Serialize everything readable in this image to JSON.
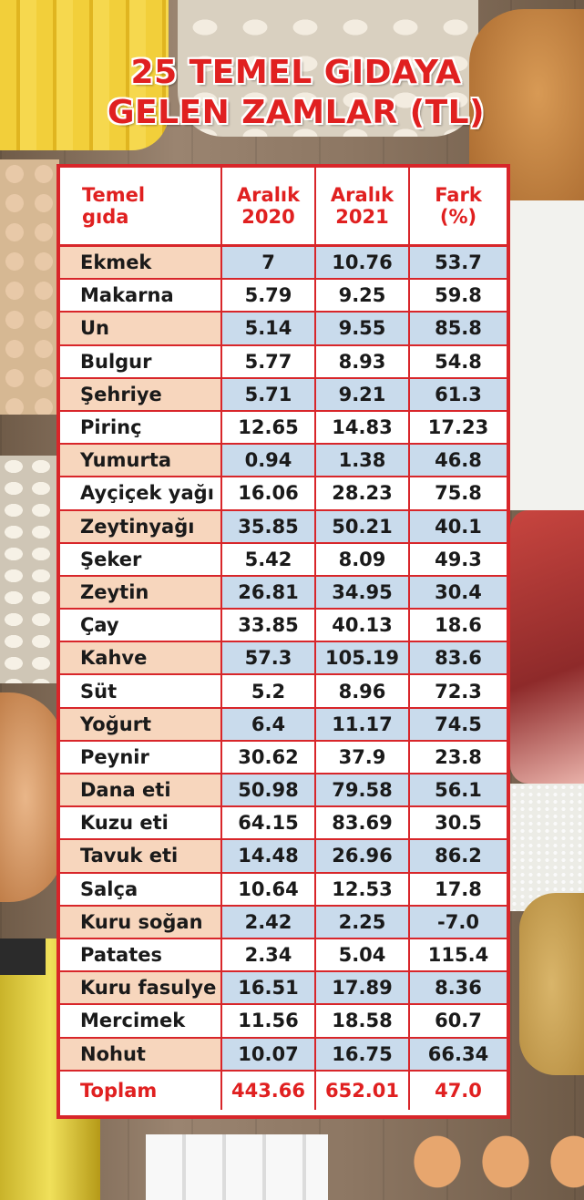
{
  "title_line1": "25 TEMEL GIDAYA",
  "title_line2": "GELEN ZAMLAR (TL)",
  "chart_data": {
    "type": "table",
    "columns": [
      "Temel gıda",
      "Aralık 2020",
      "Aralık 2021",
      "Fark (%)"
    ],
    "rows": [
      [
        "Ekmek",
        "7",
        "10.76",
        "53.7"
      ],
      [
        "Makarna",
        "5.79",
        "9.25",
        "59.8"
      ],
      [
        "Un",
        "5.14",
        "9.55",
        "85.8"
      ],
      [
        "Bulgur",
        "5.77",
        "8.93",
        "54.8"
      ],
      [
        "Şehriye",
        "5.71",
        "9.21",
        "61.3"
      ],
      [
        "Pirinç",
        "12.65",
        "14.83",
        "17.23"
      ],
      [
        "Yumurta",
        "0.94",
        "1.38",
        "46.8"
      ],
      [
        "Ayçiçek yağı",
        "16.06",
        "28.23",
        "75.8"
      ],
      [
        "Zeytinyağı",
        "35.85",
        "50.21",
        "40.1"
      ],
      [
        "Şeker",
        "5.42",
        "8.09",
        "49.3"
      ],
      [
        "Zeytin",
        "26.81",
        "34.95",
        "30.4"
      ],
      [
        "Çay",
        "33.85",
        "40.13",
        "18.6"
      ],
      [
        "Kahve",
        "57.3",
        "105.19",
        "83.6"
      ],
      [
        "Süt",
        "5.2",
        "8.96",
        "72.3"
      ],
      [
        "Yoğurt",
        "6.4",
        "11.17",
        "74.5"
      ],
      [
        "Peynir",
        "30.62",
        "37.9",
        "23.8"
      ],
      [
        "Dana eti",
        "50.98",
        "79.58",
        "56.1"
      ],
      [
        "Kuzu eti",
        "64.15",
        "83.69",
        "30.5"
      ],
      [
        "Tavuk eti",
        "14.48",
        "26.96",
        "86.2"
      ],
      [
        "Salça",
        "10.64",
        "12.53",
        "17.8"
      ],
      [
        "Kuru soğan",
        "2.42",
        "2.25",
        "-7.0"
      ],
      [
        "Patates",
        "2.34",
        "5.04",
        "115.4"
      ],
      [
        "Kuru fasulye",
        "16.51",
        "17.89",
        "8.36"
      ],
      [
        "Mercimek",
        "11.56",
        "18.58",
        "60.7"
      ],
      [
        "Nohut",
        "10.07",
        "16.75",
        "66.34"
      ]
    ],
    "total": [
      "Toplam",
      "443.66",
      "652.01",
      "47.0"
    ]
  },
  "colors": {
    "accent_red": "#e02020",
    "row_name_highlight": "#f7d6bd",
    "row_value_highlight": "#c9dbec"
  }
}
